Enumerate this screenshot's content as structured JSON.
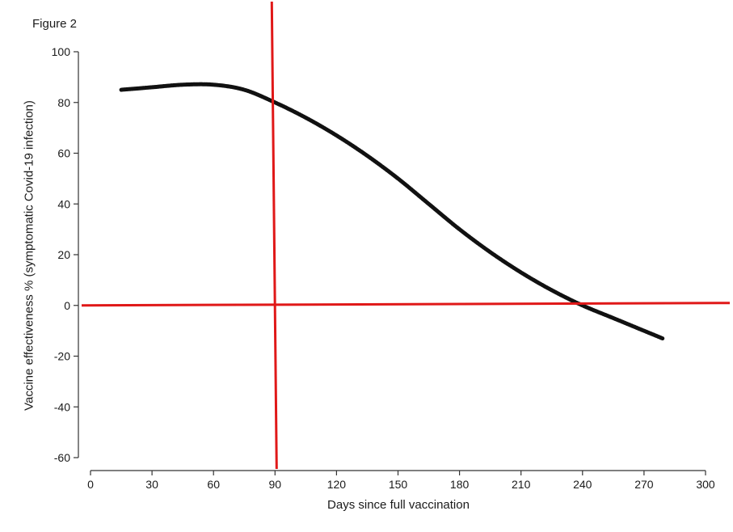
{
  "chart_data": {
    "type": "line",
    "title": "Figure 2",
    "xlabel": "Days since full vaccination",
    "ylabel": "Vaccine effectiveness % (symptomatic Covid-19 infection)",
    "xlim": [
      0,
      300
    ],
    "ylim": [
      -60,
      100
    ],
    "xticks": [
      0,
      30,
      60,
      90,
      120,
      150,
      180,
      210,
      240,
      270,
      300
    ],
    "yticks": [
      -60,
      -40,
      -20,
      0,
      20,
      40,
      60,
      80,
      100
    ],
    "series": [
      {
        "color": "#111111",
        "style": "dotted-thick",
        "x": [
          15,
          30,
          45,
          60,
          75,
          90,
          105,
          120,
          135,
          150,
          165,
          180,
          195,
          210,
          225,
          240,
          255,
          270,
          279
        ],
        "y": [
          85,
          86,
          87,
          87,
          85,
          80,
          74,
          67,
          59,
          50,
          40,
          30,
          21,
          13,
          6,
          0,
          -5,
          -10,
          -13
        ]
      }
    ],
    "reference_lines": [
      {
        "orientation": "vertical",
        "x": 90,
        "color": "#e01818"
      },
      {
        "orientation": "horizontal",
        "y": 0,
        "color": "#e01818"
      }
    ],
    "grid": false,
    "legend": "none"
  }
}
